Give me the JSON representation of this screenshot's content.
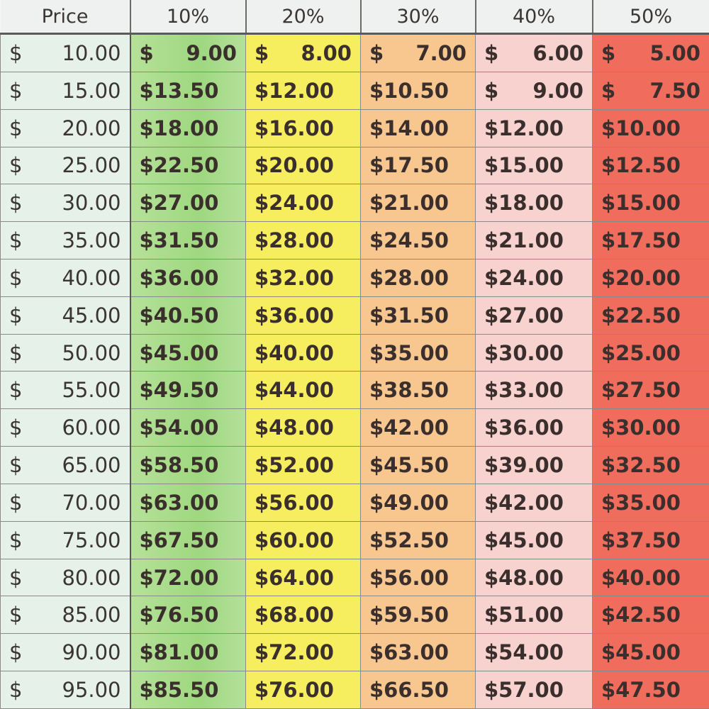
{
  "colors": {
    "price": "#e6f1ea",
    "d10": "#a9dc8a",
    "d20": "#f6ee5e",
    "d30": "#f8c68f",
    "d40": "#f8d2cf",
    "d50": "#f06d5d"
  },
  "headers": [
    "Price",
    "10%",
    "20%",
    "30%",
    "40%",
    "50%"
  ],
  "rows": [
    [
      "$ 10.00",
      "$ 9.00",
      "$ 8.00",
      "$ 7.00",
      "$ 6.00",
      "$ 5.00"
    ],
    [
      "$ 15.00",
      "$13.50",
      "$12.00",
      "$10.50",
      "$ 9.00",
      "$ 7.50"
    ],
    [
      "$ 20.00",
      "$18.00",
      "$16.00",
      "$14.00",
      "$12.00",
      "$10.00"
    ],
    [
      "$ 25.00",
      "$22.50",
      "$20.00",
      "$17.50",
      "$15.00",
      "$12.50"
    ],
    [
      "$ 30.00",
      "$27.00",
      "$24.00",
      "$21.00",
      "$18.00",
      "$15.00"
    ],
    [
      "$ 35.00",
      "$31.50",
      "$28.00",
      "$24.50",
      "$21.00",
      "$17.50"
    ],
    [
      "$ 40.00",
      "$36.00",
      "$32.00",
      "$28.00",
      "$24.00",
      "$20.00"
    ],
    [
      "$ 45.00",
      "$40.50",
      "$36.00",
      "$31.50",
      "$27.00",
      "$22.50"
    ],
    [
      "$ 50.00",
      "$45.00",
      "$40.00",
      "$35.00",
      "$30.00",
      "$25.00"
    ],
    [
      "$ 55.00",
      "$49.50",
      "$44.00",
      "$38.50",
      "$33.00",
      "$27.50"
    ],
    [
      "$ 60.00",
      "$54.00",
      "$48.00",
      "$42.00",
      "$36.00",
      "$30.00"
    ],
    [
      "$ 65.00",
      "$58.50",
      "$52.00",
      "$45.50",
      "$39.00",
      "$32.50"
    ],
    [
      "$ 70.00",
      "$63.00",
      "$56.00",
      "$49.00",
      "$42.00",
      "$35.00"
    ],
    [
      "$ 75.00",
      "$67.50",
      "$60.00",
      "$52.50",
      "$45.00",
      "$37.50"
    ],
    [
      "$ 80.00",
      "$72.00",
      "$64.00",
      "$56.00",
      "$48.00",
      "$40.00"
    ],
    [
      "$ 85.00",
      "$76.50",
      "$68.00",
      "$59.50",
      "$51.00",
      "$42.50"
    ],
    [
      "$ 90.00",
      "$81.00",
      "$72.00",
      "$63.00",
      "$54.00",
      "$45.00"
    ],
    [
      "$ 95.00",
      "$85.50",
      "$76.00",
      "$66.50",
      "$57.00",
      "$47.50"
    ]
  ]
}
